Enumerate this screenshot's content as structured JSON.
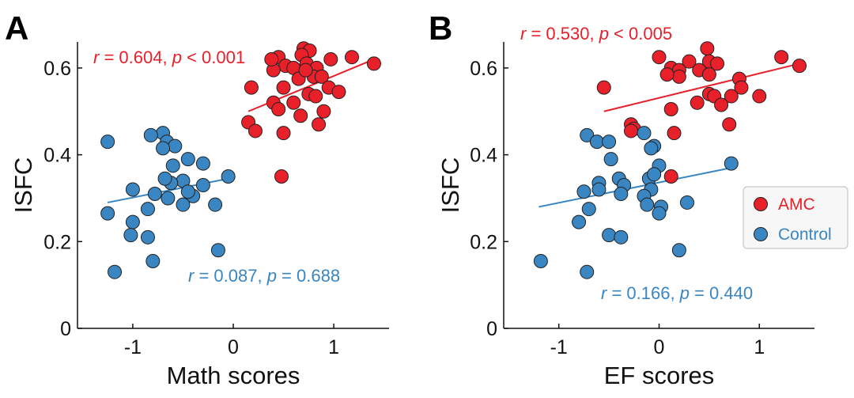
{
  "colors": {
    "amc": "#E8202A",
    "control": "#3A86C2",
    "axis": "#111111"
  },
  "legend": {
    "items": [
      {
        "label": "AMC",
        "key": "amc"
      },
      {
        "label": "Control",
        "key": "control"
      }
    ]
  },
  "chart_data": [
    {
      "type": "scatter",
      "panel": "A",
      "xlabel": "Math scores",
      "ylabel": "ISFC",
      "xlim": [
        -1.55,
        1.55
      ],
      "ylim": [
        0,
        0.66
      ],
      "xticks": [
        -1,
        0,
        1
      ],
      "xtick_labels": [
        "-1",
        "0",
        "1"
      ],
      "yticks": [
        0,
        0.2,
        0.4,
        0.6
      ],
      "ytick_labels": [
        "0",
        "0.2",
        "0.4",
        "0.6"
      ],
      "grid": false,
      "series": [
        {
          "name": "AMC",
          "color_key": "amc",
          "stat": {
            "r": "0.604",
            "p_op": "<",
            "p": "0.001"
          },
          "fit": {
            "x": [
              0.15,
              1.4
            ],
            "y": [
              0.5,
              0.62
            ]
          },
          "points": [
            [
              0.7,
              0.645
            ],
            [
              0.76,
              0.64
            ],
            [
              0.68,
              0.63
            ],
            [
              0.45,
              0.625
            ],
            [
              1.18,
              0.625
            ],
            [
              1.4,
              0.61
            ],
            [
              0.52,
              0.605
            ],
            [
              0.6,
              0.6
            ],
            [
              0.4,
              0.595
            ],
            [
              0.73,
              0.61
            ],
            [
              0.83,
              0.6
            ],
            [
              0.97,
              0.62
            ],
            [
              0.8,
              0.58
            ],
            [
              0.65,
              0.575
            ],
            [
              0.88,
              0.58
            ],
            [
              0.5,
              0.555
            ],
            [
              0.18,
              0.555
            ],
            [
              0.75,
              0.54
            ],
            [
              0.95,
              0.555
            ],
            [
              1.05,
              0.545
            ],
            [
              0.82,
              0.535
            ],
            [
              0.4,
              0.52
            ],
            [
              0.6,
              0.52
            ],
            [
              0.9,
              0.5
            ],
            [
              0.45,
              0.505
            ],
            [
              0.67,
              0.49
            ],
            [
              0.85,
              0.47
            ],
            [
              0.15,
              0.475
            ],
            [
              0.22,
              0.455
            ],
            [
              0.5,
              0.45
            ],
            [
              0.48,
              0.35
            ],
            [
              0.38,
              0.62
            ],
            [
              0.72,
              0.595
            ]
          ]
        },
        {
          "name": "Control",
          "color_key": "control",
          "stat": {
            "r": "0.087",
            "p_op": "=",
            "p": "0.688"
          },
          "fit": {
            "x": [
              -1.25,
              -0.05
            ],
            "y": [
              0.29,
              0.345
            ]
          },
          "points": [
            [
              -1.25,
              0.43
            ],
            [
              -0.7,
              0.45
            ],
            [
              -0.82,
              0.445
            ],
            [
              -0.66,
              0.43
            ],
            [
              -0.58,
              0.42
            ],
            [
              -0.7,
              0.415
            ],
            [
              -0.45,
              0.39
            ],
            [
              -0.3,
              0.38
            ],
            [
              -0.6,
              0.375
            ],
            [
              -0.05,
              0.35
            ],
            [
              -0.5,
              0.34
            ],
            [
              -0.62,
              0.335
            ],
            [
              -0.3,
              0.33
            ],
            [
              -1.0,
              0.32
            ],
            [
              -0.78,
              0.31
            ],
            [
              -0.4,
              0.305
            ],
            [
              -0.65,
              0.3
            ],
            [
              -0.5,
              0.285
            ],
            [
              -0.18,
              0.285
            ],
            [
              -0.85,
              0.275
            ],
            [
              -1.25,
              0.265
            ],
            [
              -1.0,
              0.245
            ],
            [
              -1.02,
              0.215
            ],
            [
              -0.85,
              0.21
            ],
            [
              -0.15,
              0.18
            ],
            [
              -0.8,
              0.155
            ],
            [
              -1.18,
              0.13
            ],
            [
              -0.68,
              0.345
            ],
            [
              -0.45,
              0.315
            ]
          ]
        }
      ]
    },
    {
      "type": "scatter",
      "panel": "B",
      "xlabel": "EF scores",
      "ylabel": "ISFC",
      "xlim": [
        -1.55,
        1.55
      ],
      "ylim": [
        0,
        0.66
      ],
      "xticks": [
        -1,
        0,
        1
      ],
      "xtick_labels": [
        "-1",
        "0",
        "1"
      ],
      "yticks": [
        0,
        0.2,
        0.4,
        0.6
      ],
      "ytick_labels": [
        "0",
        "0.2",
        "0.4",
        "0.6"
      ],
      "grid": false,
      "series": [
        {
          "name": "AMC",
          "color_key": "amc",
          "stat": {
            "r": "0.530",
            "p_op": "<",
            "p": "0.005"
          },
          "fit": {
            "x": [
              -0.55,
              1.4
            ],
            "y": [
              0.5,
              0.61
            ]
          },
          "points": [
            [
              0.48,
              0.645
            ],
            [
              0.0,
              0.625
            ],
            [
              1.22,
              0.625
            ],
            [
              0.5,
              0.615
            ],
            [
              0.3,
              0.615
            ],
            [
              0.58,
              0.61
            ],
            [
              1.4,
              0.605
            ],
            [
              0.12,
              0.6
            ],
            [
              0.2,
              0.595
            ],
            [
              0.4,
              0.595
            ],
            [
              0.5,
              0.585
            ],
            [
              0.2,
              0.58
            ],
            [
              0.8,
              0.575
            ],
            [
              -0.55,
              0.555
            ],
            [
              0.82,
              0.555
            ],
            [
              0.5,
              0.54
            ],
            [
              0.55,
              0.535
            ],
            [
              1.0,
              0.535
            ],
            [
              0.72,
              0.535
            ],
            [
              0.38,
              0.52
            ],
            [
              0.62,
              0.515
            ],
            [
              0.12,
              0.505
            ],
            [
              0.7,
              0.47
            ],
            [
              -0.28,
              0.47
            ],
            [
              -0.25,
              0.46
            ],
            [
              -0.28,
              0.455
            ],
            [
              0.15,
              0.45
            ],
            [
              0.12,
              0.35
            ],
            [
              0.08,
              0.585
            ]
          ]
        },
        {
          "name": "Control",
          "color_key": "control",
          "stat": {
            "r": "0.166",
            "p_op": "=",
            "p": "0.440"
          },
          "fit": {
            "x": [
              -1.2,
              0.72
            ],
            "y": [
              0.28,
              0.37
            ]
          },
          "points": [
            [
              -0.72,
              0.445
            ],
            [
              -0.15,
              0.45
            ],
            [
              -0.62,
              0.43
            ],
            [
              -0.5,
              0.43
            ],
            [
              -0.05,
              0.42
            ],
            [
              -0.08,
              0.415
            ],
            [
              -0.48,
              0.39
            ],
            [
              0.72,
              0.38
            ],
            [
              0.0,
              0.375
            ],
            [
              -0.6,
              0.335
            ],
            [
              -0.4,
              0.345
            ],
            [
              -0.1,
              0.345
            ],
            [
              -0.05,
              0.355
            ],
            [
              -0.35,
              0.33
            ],
            [
              -0.6,
              0.32
            ],
            [
              -0.08,
              0.32
            ],
            [
              -0.15,
              0.305
            ],
            [
              -0.75,
              0.315
            ],
            [
              -0.38,
              0.31
            ],
            [
              0.28,
              0.29
            ],
            [
              -0.12,
              0.285
            ],
            [
              0.02,
              0.28
            ],
            [
              0.0,
              0.265
            ],
            [
              -0.7,
              0.275
            ],
            [
              -0.8,
              0.245
            ],
            [
              -0.5,
              0.215
            ],
            [
              -0.38,
              0.21
            ],
            [
              0.2,
              0.18
            ],
            [
              -1.18,
              0.155
            ],
            [
              -0.72,
              0.13
            ]
          ]
        }
      ]
    }
  ]
}
